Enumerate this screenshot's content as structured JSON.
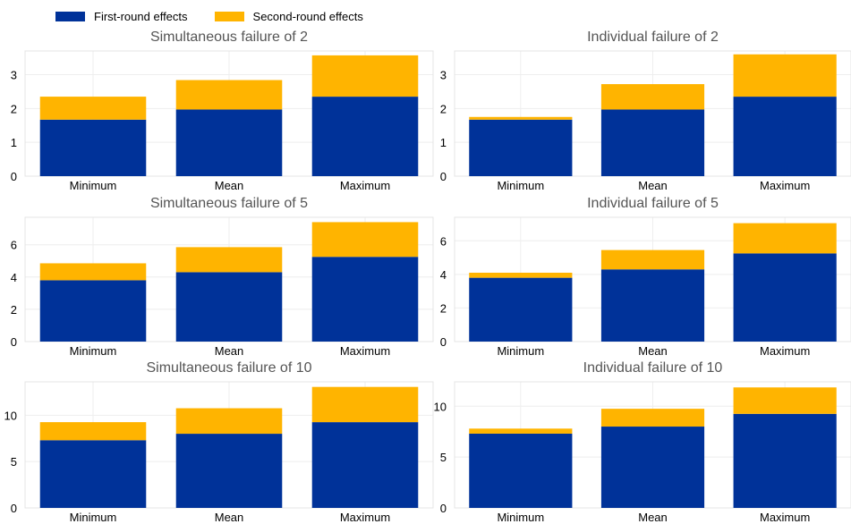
{
  "colors": {
    "first_round": "#003299",
    "second_round": "#FFB400"
  },
  "legend": [
    {
      "label": "First-round effects",
      "color": "#003299"
    },
    {
      "label": "Second-round effects",
      "color": "#FFB400"
    }
  ],
  "chart_data": [
    {
      "type": "bar",
      "stacked": true,
      "title": "Simultaneous failure of 2",
      "categories": [
        "Minimum",
        "Mean",
        "Maximum"
      ],
      "series": [
        {
          "name": "First-round effects",
          "values": [
            1.67,
            1.97,
            2.35
          ]
        },
        {
          "name": "Second-round effects",
          "values": [
            0.68,
            0.87,
            1.22
          ]
        }
      ],
      "ylim": [
        0,
        3.7
      ],
      "yticks": [
        0,
        1,
        2,
        3
      ],
      "grid": true
    },
    {
      "type": "bar",
      "stacked": true,
      "title": "Individual failure of 2",
      "categories": [
        "Minimum",
        "Mean",
        "Maximum"
      ],
      "series": [
        {
          "name": "First-round effects",
          "values": [
            1.67,
            1.97,
            2.35
          ]
        },
        {
          "name": "Second-round effects",
          "values": [
            0.08,
            0.75,
            1.25
          ]
        }
      ],
      "ylim": [
        0,
        3.7
      ],
      "yticks": [
        0,
        1,
        2,
        3
      ],
      "grid": true
    },
    {
      "type": "bar",
      "stacked": true,
      "title": "Simultaneous failure of 5",
      "categories": [
        "Minimum",
        "Mean",
        "Maximum"
      ],
      "series": [
        {
          "name": "First-round effects",
          "values": [
            3.8,
            4.3,
            5.25
          ]
        },
        {
          "name": "Second-round effects",
          "values": [
            1.05,
            1.55,
            2.15
          ]
        }
      ],
      "ylim": [
        0,
        7.7
      ],
      "yticks": [
        0,
        2,
        4,
        6
      ],
      "grid": true
    },
    {
      "type": "bar",
      "stacked": true,
      "title": "Individual failure of 5",
      "categories": [
        "Minimum",
        "Mean",
        "Maximum"
      ],
      "series": [
        {
          "name": "First-round effects",
          "values": [
            3.8,
            4.3,
            5.25
          ]
        },
        {
          "name": "Second-round effects",
          "values": [
            0.3,
            1.15,
            1.8
          ]
        }
      ],
      "ylim": [
        0,
        7.4
      ],
      "yticks": [
        0,
        2,
        4,
        6
      ],
      "grid": true
    },
    {
      "type": "bar",
      "stacked": true,
      "title": "Simultaneous failure of 10",
      "categories": [
        "Minimum",
        "Mean",
        "Maximum"
      ],
      "series": [
        {
          "name": "First-round effects",
          "values": [
            7.3,
            8.0,
            9.25
          ]
        },
        {
          "name": "Second-round effects",
          "values": [
            1.95,
            2.75,
            3.8
          ]
        }
      ],
      "ylim": [
        0,
        13.6
      ],
      "yticks": [
        0,
        5,
        10
      ],
      "grid": true
    },
    {
      "type": "bar",
      "stacked": true,
      "title": "Individual failure of 10",
      "categories": [
        "Minimum",
        "Mean",
        "Maximum"
      ],
      "series": [
        {
          "name": "First-round effects",
          "values": [
            7.3,
            8.0,
            9.25
          ]
        },
        {
          "name": "Second-round effects",
          "values": [
            0.5,
            1.75,
            2.6
          ]
        }
      ],
      "ylim": [
        0,
        12.4
      ],
      "yticks": [
        0,
        5,
        10
      ],
      "grid": true
    }
  ]
}
